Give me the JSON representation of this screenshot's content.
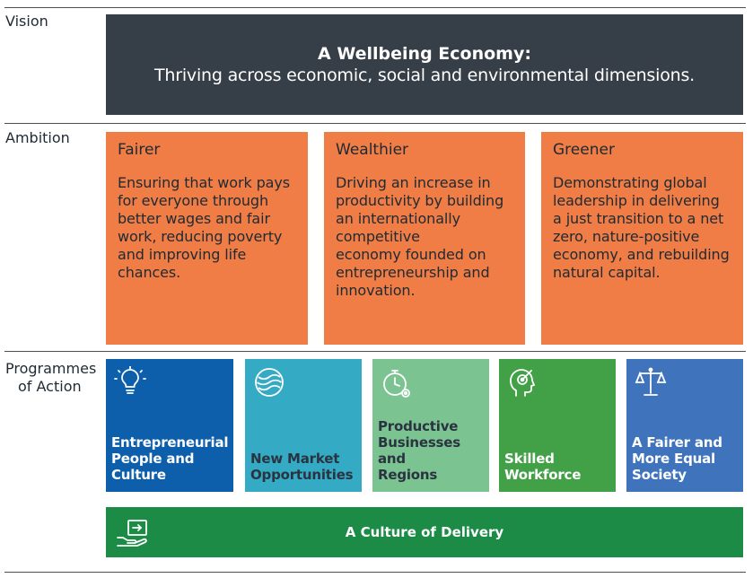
{
  "rows": {
    "vision": "Vision",
    "ambition": "Ambition",
    "programmes": [
      "Programmes",
      "of Action"
    ]
  },
  "vision": {
    "title": "A Wellbeing Economy:",
    "subtitle": "Thriving across economic, social and environmental dimensions."
  },
  "ambition": [
    {
      "title": "Fairer",
      "lines": [
        "Ensuring that work pays",
        "for everyone through",
        "better wages and fair",
        "work, reducing poverty",
        "and improving life",
        "chances."
      ]
    },
    {
      "title": "Wealthier",
      "lines": [
        "Driving an increase in",
        "productivity by building",
        "an internationally",
        "competitive",
        "economy founded on",
        "entrepreneurship and",
        "innovation."
      ]
    },
    {
      "title": "Greener",
      "lines": [
        "Demonstrating global",
        "leadership in delivering",
        "a just transition to a net",
        "zero, nature-positive",
        "economy, and rebuilding",
        "natural capital."
      ]
    }
  ],
  "programmes": [
    {
      "icon": "lightbulb-icon",
      "lines": [
        "Entrepreneurial",
        "People and",
        "Culture"
      ],
      "color": "#0d5fac"
    },
    {
      "icon": "globe-waves-icon",
      "lines": [
        "New Market",
        "Opportunities"
      ],
      "color": "#34aac4"
    },
    {
      "icon": "stopwatch-gear-icon",
      "lines": [
        "Productive",
        "Businesses and",
        "Regions"
      ],
      "color": "#7cc392"
    },
    {
      "icon": "head-target-icon",
      "lines": [
        "Skilled",
        "Workforce"
      ],
      "color": "#42a046"
    },
    {
      "icon": "scales-icon",
      "lines": [
        "A Fairer and",
        "More Equal",
        "Society"
      ],
      "color": "#3f74bd"
    }
  ],
  "delivery": {
    "icon": "hand-arrow-box-icon",
    "label": "A Culture of Delivery",
    "color": "#1b8b45"
  }
}
